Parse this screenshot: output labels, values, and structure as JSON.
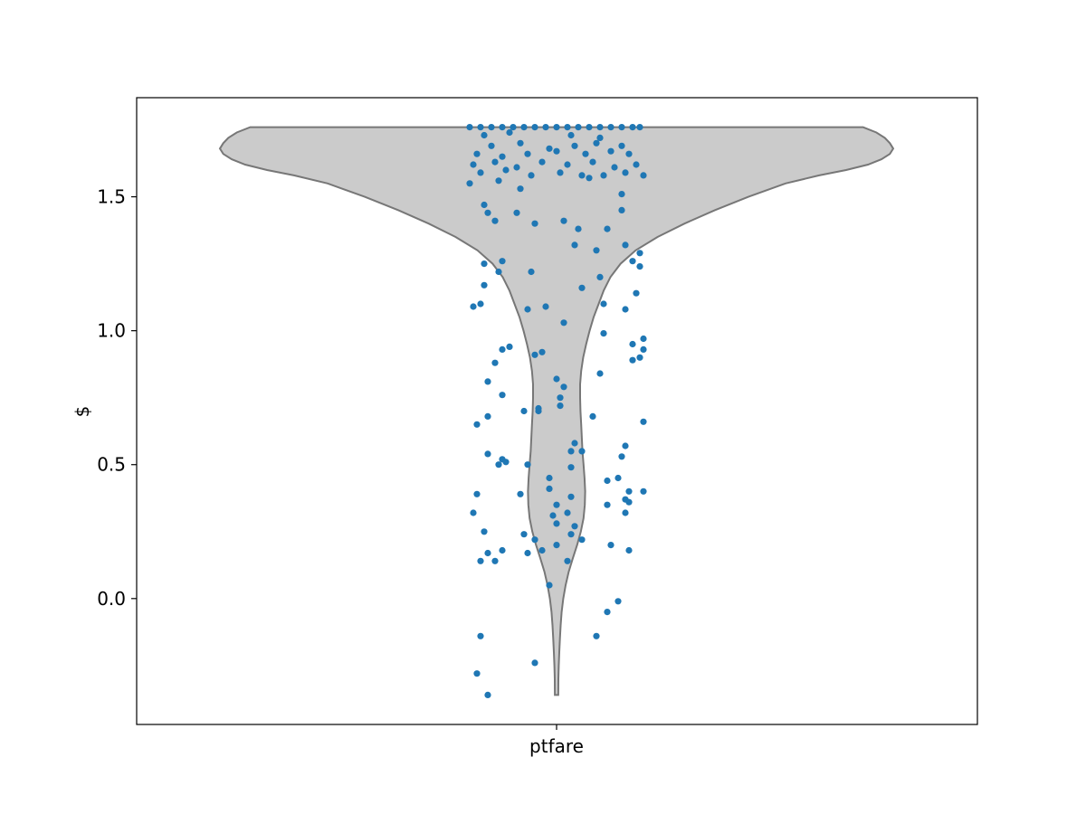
{
  "chart_data": {
    "type": "violin",
    "xlabel": "ptfare",
    "ylabel": "$",
    "category": "ptfare",
    "ylim": [
      -0.47,
      1.87
    ],
    "yticks": [
      0.0,
      0.5,
      1.0,
      1.5
    ],
    "ytick_labels": [
      "0.0",
      "0.5",
      "1.0",
      "1.5"
    ],
    "grid": false,
    "colors": {
      "violin_fill": "#cbcbcb",
      "violin_edge": "#777777",
      "points": "#1f77b4"
    },
    "violin_density": [
      [
        1.76,
        0.91
      ],
      [
        1.74,
        0.95
      ],
      [
        1.72,
        0.975
      ],
      [
        1.7,
        0.99
      ],
      [
        1.68,
        1.0
      ],
      [
        1.66,
        0.99
      ],
      [
        1.64,
        0.965
      ],
      [
        1.62,
        0.925
      ],
      [
        1.6,
        0.86
      ],
      [
        1.58,
        0.78
      ],
      [
        1.55,
        0.68
      ],
      [
        1.5,
        0.57
      ],
      [
        1.45,
        0.47
      ],
      [
        1.4,
        0.38
      ],
      [
        1.35,
        0.3
      ],
      [
        1.3,
        0.235
      ],
      [
        1.25,
        0.19
      ],
      [
        1.2,
        0.16
      ],
      [
        1.15,
        0.14
      ],
      [
        1.1,
        0.125
      ],
      [
        1.05,
        0.11
      ],
      [
        1.0,
        0.098
      ],
      [
        0.95,
        0.088
      ],
      [
        0.9,
        0.079
      ],
      [
        0.85,
        0.073
      ],
      [
        0.8,
        0.07
      ],
      [
        0.75,
        0.07
      ],
      [
        0.7,
        0.071
      ],
      [
        0.65,
        0.073
      ],
      [
        0.6,
        0.075
      ],
      [
        0.55,
        0.077
      ],
      [
        0.5,
        0.08
      ],
      [
        0.45,
        0.083
      ],
      [
        0.4,
        0.085
      ],
      [
        0.35,
        0.084
      ],
      [
        0.3,
        0.08
      ],
      [
        0.25,
        0.072
      ],
      [
        0.2,
        0.061
      ],
      [
        0.15,
        0.048
      ],
      [
        0.1,
        0.036
      ],
      [
        0.05,
        0.027
      ],
      [
        0.0,
        0.02
      ],
      [
        -0.05,
        0.015
      ],
      [
        -0.1,
        0.012
      ],
      [
        -0.15,
        0.01
      ],
      [
        -0.2,
        0.008
      ],
      [
        -0.25,
        0.0065
      ],
      [
        -0.3,
        0.0055
      ],
      [
        -0.36,
        0.005
      ]
    ],
    "points": [
      [
        -0.24,
        1.76
      ],
      [
        -0.21,
        1.76
      ],
      [
        -0.18,
        1.76
      ],
      [
        -0.15,
        1.76
      ],
      [
        -0.12,
        1.76
      ],
      [
        -0.09,
        1.76
      ],
      [
        -0.06,
        1.76
      ],
      [
        -0.03,
        1.76
      ],
      [
        0.0,
        1.76
      ],
      [
        0.03,
        1.76
      ],
      [
        0.06,
        1.76
      ],
      [
        0.09,
        1.76
      ],
      [
        0.12,
        1.76
      ],
      [
        0.15,
        1.76
      ],
      [
        0.18,
        1.76
      ],
      [
        0.21,
        1.76
      ],
      [
        0.23,
        1.76
      ],
      [
        -0.2,
        1.73
      ],
      [
        -0.13,
        1.74
      ],
      [
        0.04,
        1.73
      ],
      [
        0.12,
        1.72
      ],
      [
        -0.18,
        1.69
      ],
      [
        -0.1,
        1.7
      ],
      [
        -0.02,
        1.68
      ],
      [
        0.05,
        1.69
      ],
      [
        0.11,
        1.7
      ],
      [
        0.18,
        1.69
      ],
      [
        -0.22,
        1.66
      ],
      [
        -0.15,
        1.65
      ],
      [
        -0.08,
        1.66
      ],
      [
        0.0,
        1.67
      ],
      [
        0.08,
        1.66
      ],
      [
        0.15,
        1.67
      ],
      [
        0.2,
        1.66
      ],
      [
        -0.23,
        1.62
      ],
      [
        -0.17,
        1.63
      ],
      [
        -0.11,
        1.61
      ],
      [
        -0.04,
        1.63
      ],
      [
        0.03,
        1.62
      ],
      [
        0.1,
        1.63
      ],
      [
        0.16,
        1.61
      ],
      [
        0.22,
        1.62
      ],
      [
        -0.21,
        1.59
      ],
      [
        -0.14,
        1.6
      ],
      [
        -0.07,
        1.58
      ],
      [
        0.01,
        1.59
      ],
      [
        0.07,
        1.58
      ],
      [
        0.13,
        1.58
      ],
      [
        0.19,
        1.59
      ],
      [
        0.24,
        1.58
      ],
      [
        -0.24,
        1.55
      ],
      [
        -0.16,
        1.56
      ],
      [
        -0.1,
        1.53
      ],
      [
        0.09,
        1.57
      ],
      [
        0.18,
        1.51
      ],
      [
        -0.2,
        1.47
      ],
      [
        -0.19,
        1.44
      ],
      [
        -0.17,
        1.41
      ],
      [
        -0.11,
        1.44
      ],
      [
        -0.06,
        1.4
      ],
      [
        0.02,
        1.41
      ],
      [
        0.06,
        1.38
      ],
      [
        0.14,
        1.38
      ],
      [
        0.18,
        1.45
      ],
      [
        -0.2,
        1.25
      ],
      [
        -0.15,
        1.26
      ],
      [
        -0.07,
        1.22
      ],
      [
        0.05,
        1.32
      ],
      [
        0.11,
        1.3
      ],
      [
        0.19,
        1.32
      ],
      [
        0.23,
        1.29
      ],
      [
        -0.2,
        1.17
      ],
      [
        -0.16,
        1.22
      ],
      [
        0.07,
        1.16
      ],
      [
        0.12,
        1.2
      ],
      [
        0.21,
        1.26
      ],
      [
        0.23,
        1.24
      ],
      [
        -0.23,
        1.09
      ],
      [
        -0.21,
        1.1
      ],
      [
        -0.08,
        1.08
      ],
      [
        -0.03,
        1.09
      ],
      [
        0.02,
        1.03
      ],
      [
        0.13,
        1.1
      ],
      [
        0.19,
        1.08
      ],
      [
        0.22,
        1.14
      ],
      [
        -0.15,
        0.93
      ],
      [
        -0.13,
        0.94
      ],
      [
        -0.06,
        0.91
      ],
      [
        -0.04,
        0.92
      ],
      [
        0.13,
        0.99
      ],
      [
        0.21,
        0.95
      ],
      [
        0.24,
        0.97
      ],
      [
        0.24,
        0.93
      ],
      [
        0.23,
        0.9
      ],
      [
        0.21,
        0.89
      ],
      [
        -0.19,
        0.81
      ],
      [
        -0.17,
        0.88
      ],
      [
        -0.15,
        0.76
      ],
      [
        -0.05,
        0.7
      ],
      [
        0.0,
        0.82
      ],
      [
        0.02,
        0.79
      ],
      [
        0.01,
        0.72
      ],
      [
        0.1,
        0.68
      ],
      [
        0.12,
        0.84
      ],
      [
        -0.22,
        0.65
      ],
      [
        -0.19,
        0.68
      ],
      [
        -0.09,
        0.7
      ],
      [
        -0.05,
        0.71
      ],
      [
        0.01,
        0.75
      ],
      [
        0.24,
        0.66
      ],
      [
        -0.19,
        0.54
      ],
      [
        -0.16,
        0.5
      ],
      [
        -0.14,
        0.51
      ],
      [
        -0.15,
        0.52
      ],
      [
        -0.08,
        0.5
      ],
      [
        0.04,
        0.55
      ],
      [
        0.05,
        0.58
      ],
      [
        0.07,
        0.55
      ],
      [
        0.04,
        0.49
      ],
      [
        0.19,
        0.57
      ],
      [
        0.18,
        0.53
      ],
      [
        -0.22,
        0.39
      ],
      [
        -0.1,
        0.39
      ],
      [
        -0.02,
        0.45
      ],
      [
        -0.02,
        0.41
      ],
      [
        0.04,
        0.38
      ],
      [
        0.14,
        0.44
      ],
      [
        0.17,
        0.45
      ],
      [
        0.2,
        0.4
      ],
      [
        0.24,
        0.4
      ],
      [
        -0.23,
        0.32
      ],
      [
        -0.2,
        0.25
      ],
      [
        -0.09,
        0.24
      ],
      [
        -0.01,
        0.31
      ],
      [
        0.0,
        0.28
      ],
      [
        0.03,
        0.32
      ],
      [
        0.0,
        0.35
      ],
      [
        0.05,
        0.27
      ],
      [
        0.04,
        0.24
      ],
      [
        0.14,
        0.35
      ],
      [
        0.19,
        0.37
      ],
      [
        0.19,
        0.32
      ],
      [
        0.2,
        0.36
      ],
      [
        -0.19,
        0.17
      ],
      [
        -0.17,
        0.14
      ],
      [
        -0.15,
        0.18
      ],
      [
        -0.08,
        0.17
      ],
      [
        -0.06,
        0.22
      ],
      [
        -0.04,
        0.18
      ],
      [
        0.0,
        0.2
      ],
      [
        0.03,
        0.14
      ],
      [
        0.07,
        0.22
      ],
      [
        0.15,
        0.2
      ],
      [
        0.2,
        0.18
      ],
      [
        -0.21,
        0.14
      ],
      [
        -0.02,
        0.05
      ],
      [
        0.17,
        -0.01
      ],
      [
        0.14,
        -0.05
      ],
      [
        -0.21,
        -0.14
      ],
      [
        -0.06,
        -0.24
      ],
      [
        0.11,
        -0.14
      ],
      [
        -0.22,
        -0.28
      ],
      [
        -0.19,
        -0.36
      ]
    ]
  }
}
